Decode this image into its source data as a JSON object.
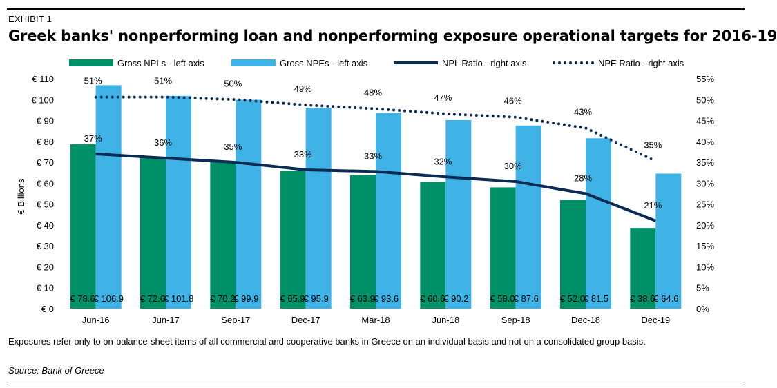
{
  "exhibit_label": "EXHIBIT 1",
  "title": "Greek banks' nonperforming loan and nonperforming exposure operational targets for 2016-19",
  "note": "Exposures refer only to on-balance-sheet items of all commercial and cooperative banks in Greece on an individual basis and not on a consolidated group basis.",
  "source": "Source: Bank of Greece",
  "colors": {
    "npl_bar": "#009068",
    "npe_bar": "#3fb3e6",
    "npl_line": "#0b2b55",
    "npe_line": "#0b2b55"
  },
  "chart_data": {
    "type": "bar",
    "categories": [
      "Jun-16",
      "Jun-17",
      "Sep-17",
      "Dec-17",
      "Mar-18",
      "Jun-18",
      "Sep-18",
      "Dec-18",
      "Dec-19"
    ],
    "series": [
      {
        "name": "Gross NPLs - left axis",
        "type": "bar",
        "axis": "left",
        "values": [
          78.6,
          72.6,
          70.2,
          65.9,
          63.9,
          60.6,
          58.0,
          52.0,
          38.6
        ],
        "labels": [
          "€ 78.6",
          "€ 72.6",
          "€ 70.2",
          "€ 65.9",
          "€ 63.9",
          "€ 60.6",
          "€ 58.0",
          "€ 52.0",
          "€ 38.6"
        ]
      },
      {
        "name": "Gross NPEs - left axis",
        "type": "bar",
        "axis": "left",
        "values": [
          106.9,
          101.8,
          99.9,
          95.9,
          93.6,
          90.2,
          87.6,
          81.5,
          64.6
        ],
        "labels": [
          "€ 106.9",
          "€ 101.8",
          "€ 99.9",
          "€ 95.9",
          "€ 93.6",
          "€ 90.2",
          "€ 87.6",
          "€ 81.5",
          "€ 64.6"
        ]
      },
      {
        "name": "NPL Ratio - right axis",
        "type": "line",
        "axis": "right",
        "values": [
          37,
          36,
          35,
          33.2,
          32.8,
          31.5,
          30.4,
          27.5,
          21
        ],
        "labels": [
          "37%",
          "36%",
          "35%",
          "33%",
          "33%",
          "32%",
          "30%",
          "28%",
          "21%"
        ]
      },
      {
        "name": "NPE Ratio - right axis",
        "type": "line",
        "style": "dotted",
        "axis": "right",
        "values": [
          50.6,
          50.6,
          50,
          48.7,
          47.8,
          46.6,
          45.8,
          43.2,
          35.3
        ],
        "labels": [
          "51%",
          "51%",
          "50%",
          "49%",
          "48%",
          "47%",
          "46%",
          "43%",
          "35%"
        ]
      }
    ],
    "left_axis": {
      "label": "€ Billions",
      "ylim": [
        0,
        110
      ],
      "ticks": [
        "€ 0",
        "€ 10",
        "€ 20",
        "€ 30",
        "€ 40",
        "€ 50",
        "€ 60",
        "€ 70",
        "€ 80",
        "€ 90",
        "€ 100",
        "€ 110"
      ]
    },
    "right_axis": {
      "label": "",
      "ylim": [
        0,
        55
      ],
      "ticks": [
        "0%",
        "5%",
        "10%",
        "15%",
        "20%",
        "25%",
        "30%",
        "35%",
        "40%",
        "45%",
        "50%",
        "55%"
      ]
    },
    "grid": false,
    "legend_position": "top"
  }
}
